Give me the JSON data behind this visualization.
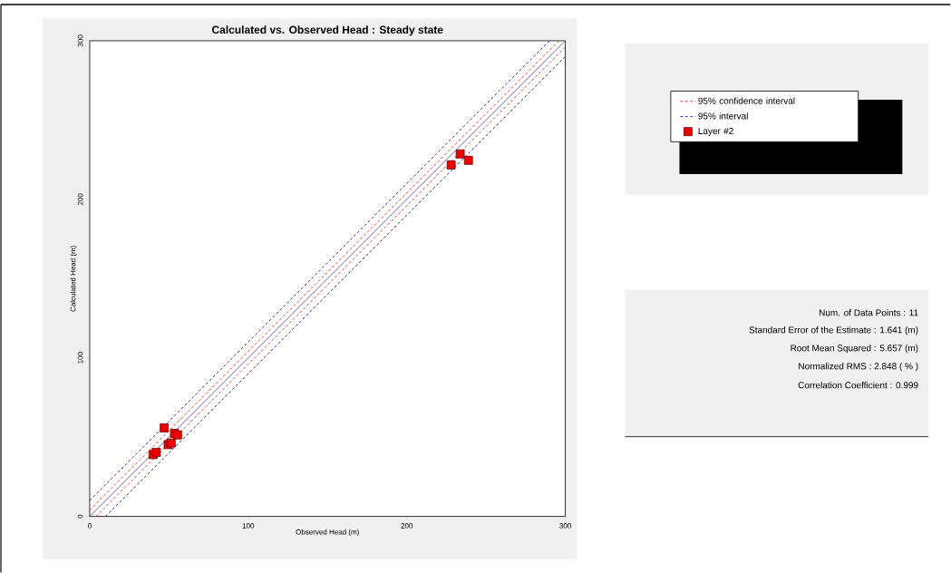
{
  "chart_data": {
    "type": "scatter",
    "title": "Calculated vs. Observed Head : Steady state",
    "xlabel": "Observed Head (m)",
    "ylabel": "Calculated Head (m)",
    "xlim": [
      0,
      300
    ],
    "ylim": [
      0,
      300
    ],
    "xticks": [
      0,
      100,
      200,
      300
    ],
    "yticks": [
      0,
      100,
      200,
      300
    ],
    "grid": false,
    "legend": "right",
    "marker": "square",
    "series": [
      {
        "name": "Layer #2",
        "type": "scatter",
        "color": "#ee0000",
        "x": [
          40,
          42,
          47,
          49.5,
          51.4,
          53.5,
          55.4,
          228,
          233.7,
          238.9
        ],
        "values": [
          39,
          40.4,
          55.8,
          45.3,
          46.3,
          52.4,
          51.4,
          221.7,
          228.6,
          224.6
        ]
      },
      {
        "type": "line",
        "color": "#5050a0",
        "line_style": "solid",
        "marker": "none",
        "x": [
          0,
          300
        ],
        "values": [
          0,
          300
        ]
      },
      {
        "name": "95% confidence interval",
        "type": "line",
        "color": "#dd2222",
        "line_style": "dashed",
        "marker": "none",
        "x": [
          0,
          296
        ],
        "values": [
          4,
          300
        ]
      },
      {
        "type": "line",
        "color": "#dd2222",
        "line_style": "dashed",
        "marker": "none",
        "x": [
          4,
          300
        ],
        "values": [
          0,
          296
        ]
      },
      {
        "name": "95% interval",
        "type": "line",
        "color": "#2222cc",
        "line_style": "dashed",
        "marker": "none",
        "x": [
          0,
          290
        ],
        "values": [
          10,
          300
        ]
      },
      {
        "type": "line",
        "color": "#2222cc",
        "line_style": "dashed",
        "marker": "none",
        "x": [
          10,
          300
        ],
        "values": [
          0,
          290
        ]
      }
    ],
    "annotations": [
      "Num. of Data Points : 11",
      "Standard Error of the Estimate : 1.641 (m)",
      "Root Mean Squared : 5.657 (m)",
      "Normalized RMS : 2.848 ( % )",
      "Correlation Coefficient : 0.999"
    ]
  }
}
